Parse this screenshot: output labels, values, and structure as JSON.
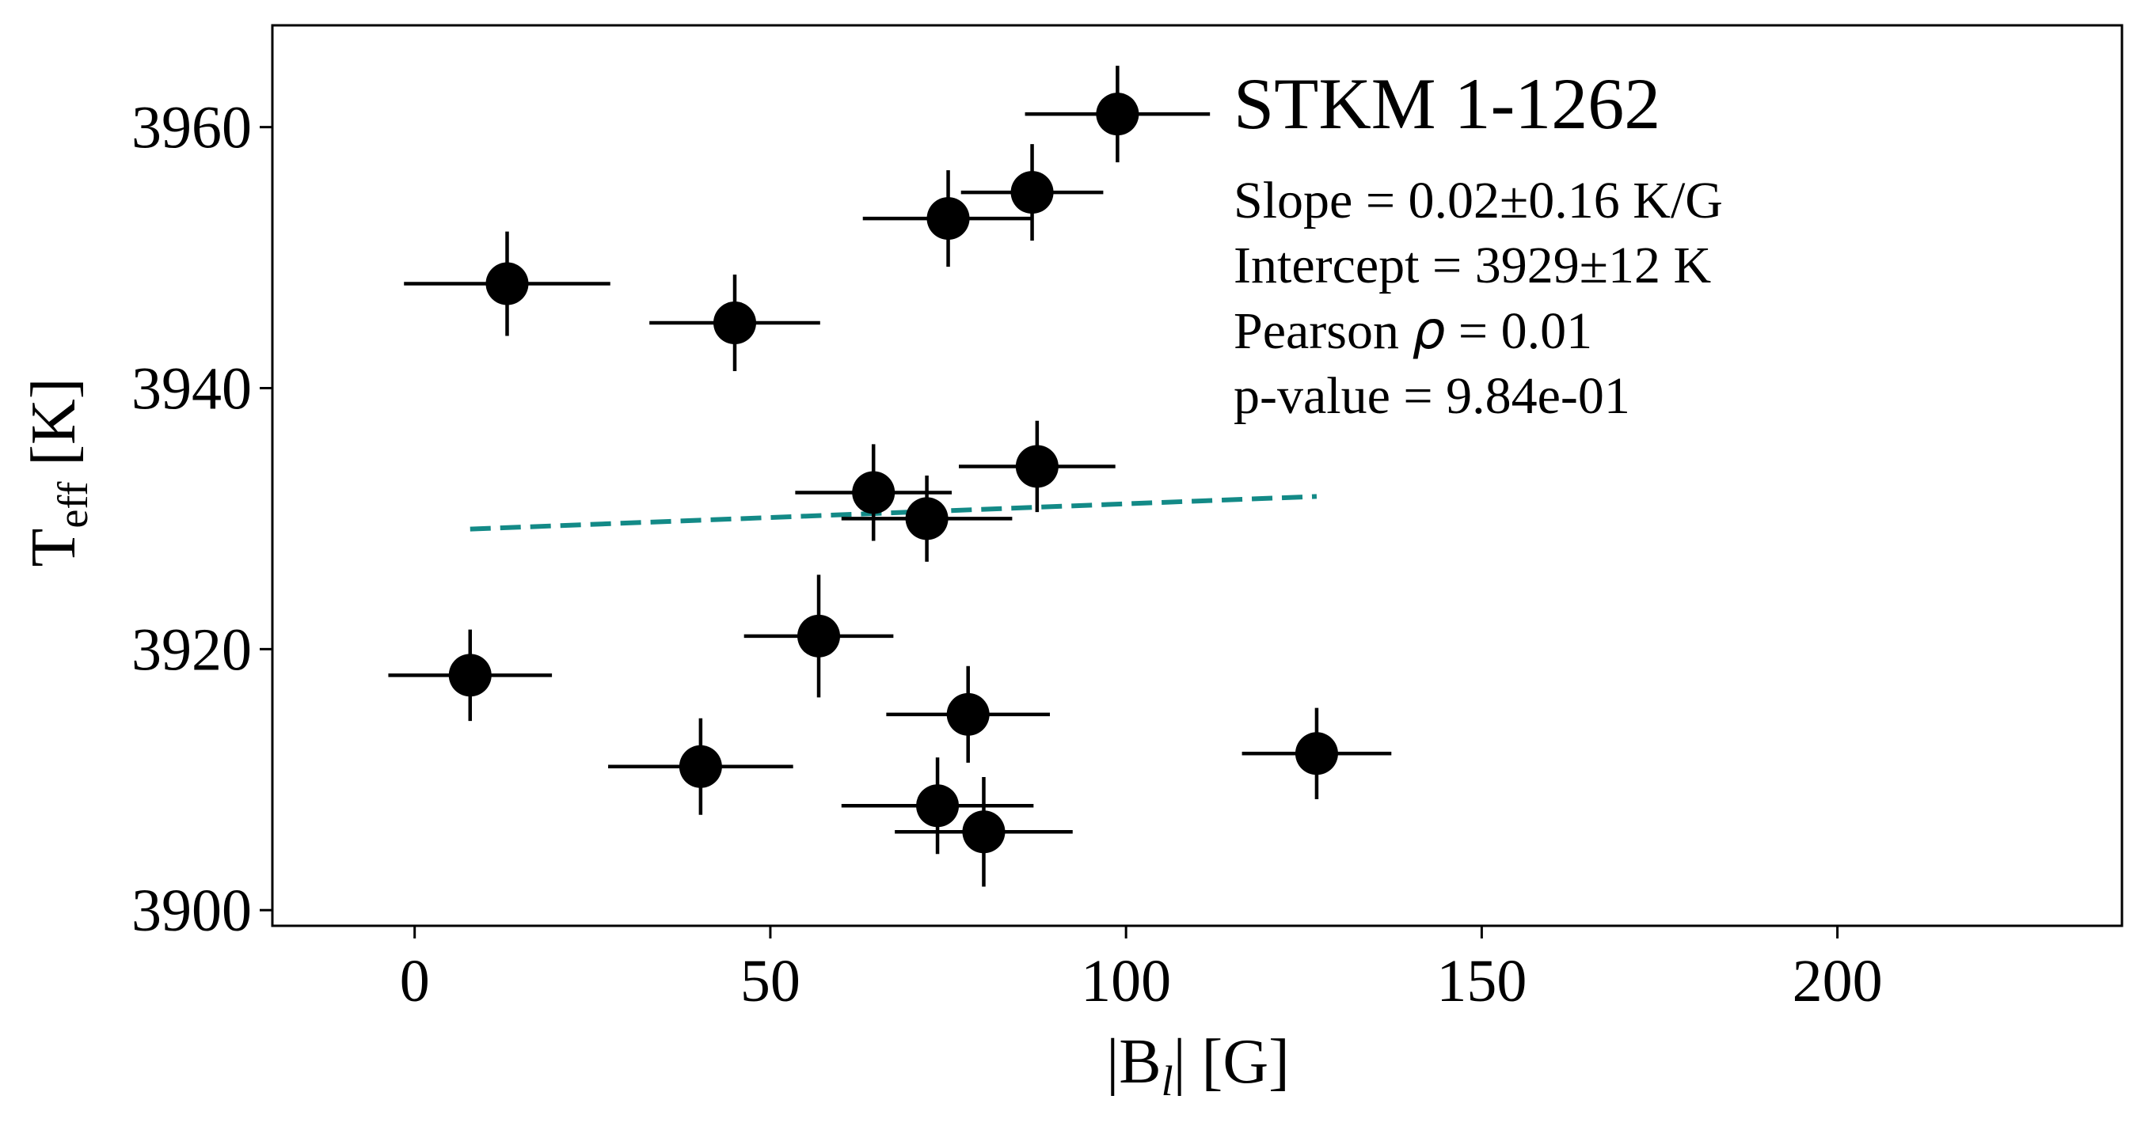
{
  "chart_data": {
    "type": "scatter",
    "title": "STKM 1-1262",
    "xlabel": {
      "main": "|B",
      "sub": "l",
      "tail": "| [G]"
    },
    "ylabel": {
      "main": "T",
      "sub": "eff",
      "tail": " [K]"
    },
    "xlim": [
      -20,
      240
    ],
    "ylim": [
      3898.8,
      3967.8
    ],
    "xticks": [
      0,
      50,
      100,
      150,
      200
    ],
    "yticks": [
      3900,
      3920,
      3940,
      3960
    ],
    "xtick_labels": [
      "0",
      "50",
      "100",
      "150",
      "200"
    ],
    "ytick_labels": [
      "3900",
      "3920",
      "3940",
      "3960"
    ],
    "points": [
      {
        "x": 98.8,
        "y": 3961,
        "xerr": 13,
        "yerr": 3.7
      },
      {
        "x": 86.8,
        "y": 3955,
        "xerr": 10,
        "yerr": 3.7
      },
      {
        "x": 75,
        "y": 3953,
        "xerr": 12,
        "yerr": 3.7
      },
      {
        "x": 13,
        "y": 3948,
        "xerr": 14.5,
        "yerr": 4
      },
      {
        "x": 45,
        "y": 3945,
        "xerr": 12,
        "yerr": 3.7
      },
      {
        "x": 87.5,
        "y": 3934,
        "xerr": 11,
        "yerr": 3.5
      },
      {
        "x": 64.5,
        "y": 3932,
        "xerr": 11,
        "yerr": 3.7
      },
      {
        "x": 72,
        "y": 3930,
        "xerr": 12,
        "yerr": 3.3
      },
      {
        "x": 56.8,
        "y": 3921,
        "xerr": 10.5,
        "yerr": 4.7
      },
      {
        "x": 7.8,
        "y": 3918,
        "xerr": 11.5,
        "yerr": 3.5
      },
      {
        "x": 77.8,
        "y": 3915,
        "xerr": 11.5,
        "yerr": 3.7
      },
      {
        "x": 40.2,
        "y": 3911,
        "xerr": 13,
        "yerr": 3.7
      },
      {
        "x": 126.8,
        "y": 3912,
        "xerr": 10.5,
        "yerr": 3.5
      },
      {
        "x": 73.5,
        "y": 3908,
        "xerr": 13.5,
        "yerr": 3.7
      },
      {
        "x": 80,
        "y": 3906,
        "xerr": 12.5,
        "yerr": 4.2
      }
    ],
    "fit_line": {
      "x": [
        7.8,
        126.8
      ],
      "y": [
        3929.2,
        3931.7
      ],
      "color": "#138a87",
      "style": "dashed"
    },
    "marker_color": "#000000",
    "annotations": {
      "slope": "Slope = 0.02±0.16 K/G",
      "intercept": "Intercept = 3929±12 K",
      "pearson_prefix": "Pearson ",
      "pearson_symbol": "ρ",
      "pearson_suffix": " = 0.01",
      "pvalue": "p-value = 9.84e-01"
    }
  }
}
